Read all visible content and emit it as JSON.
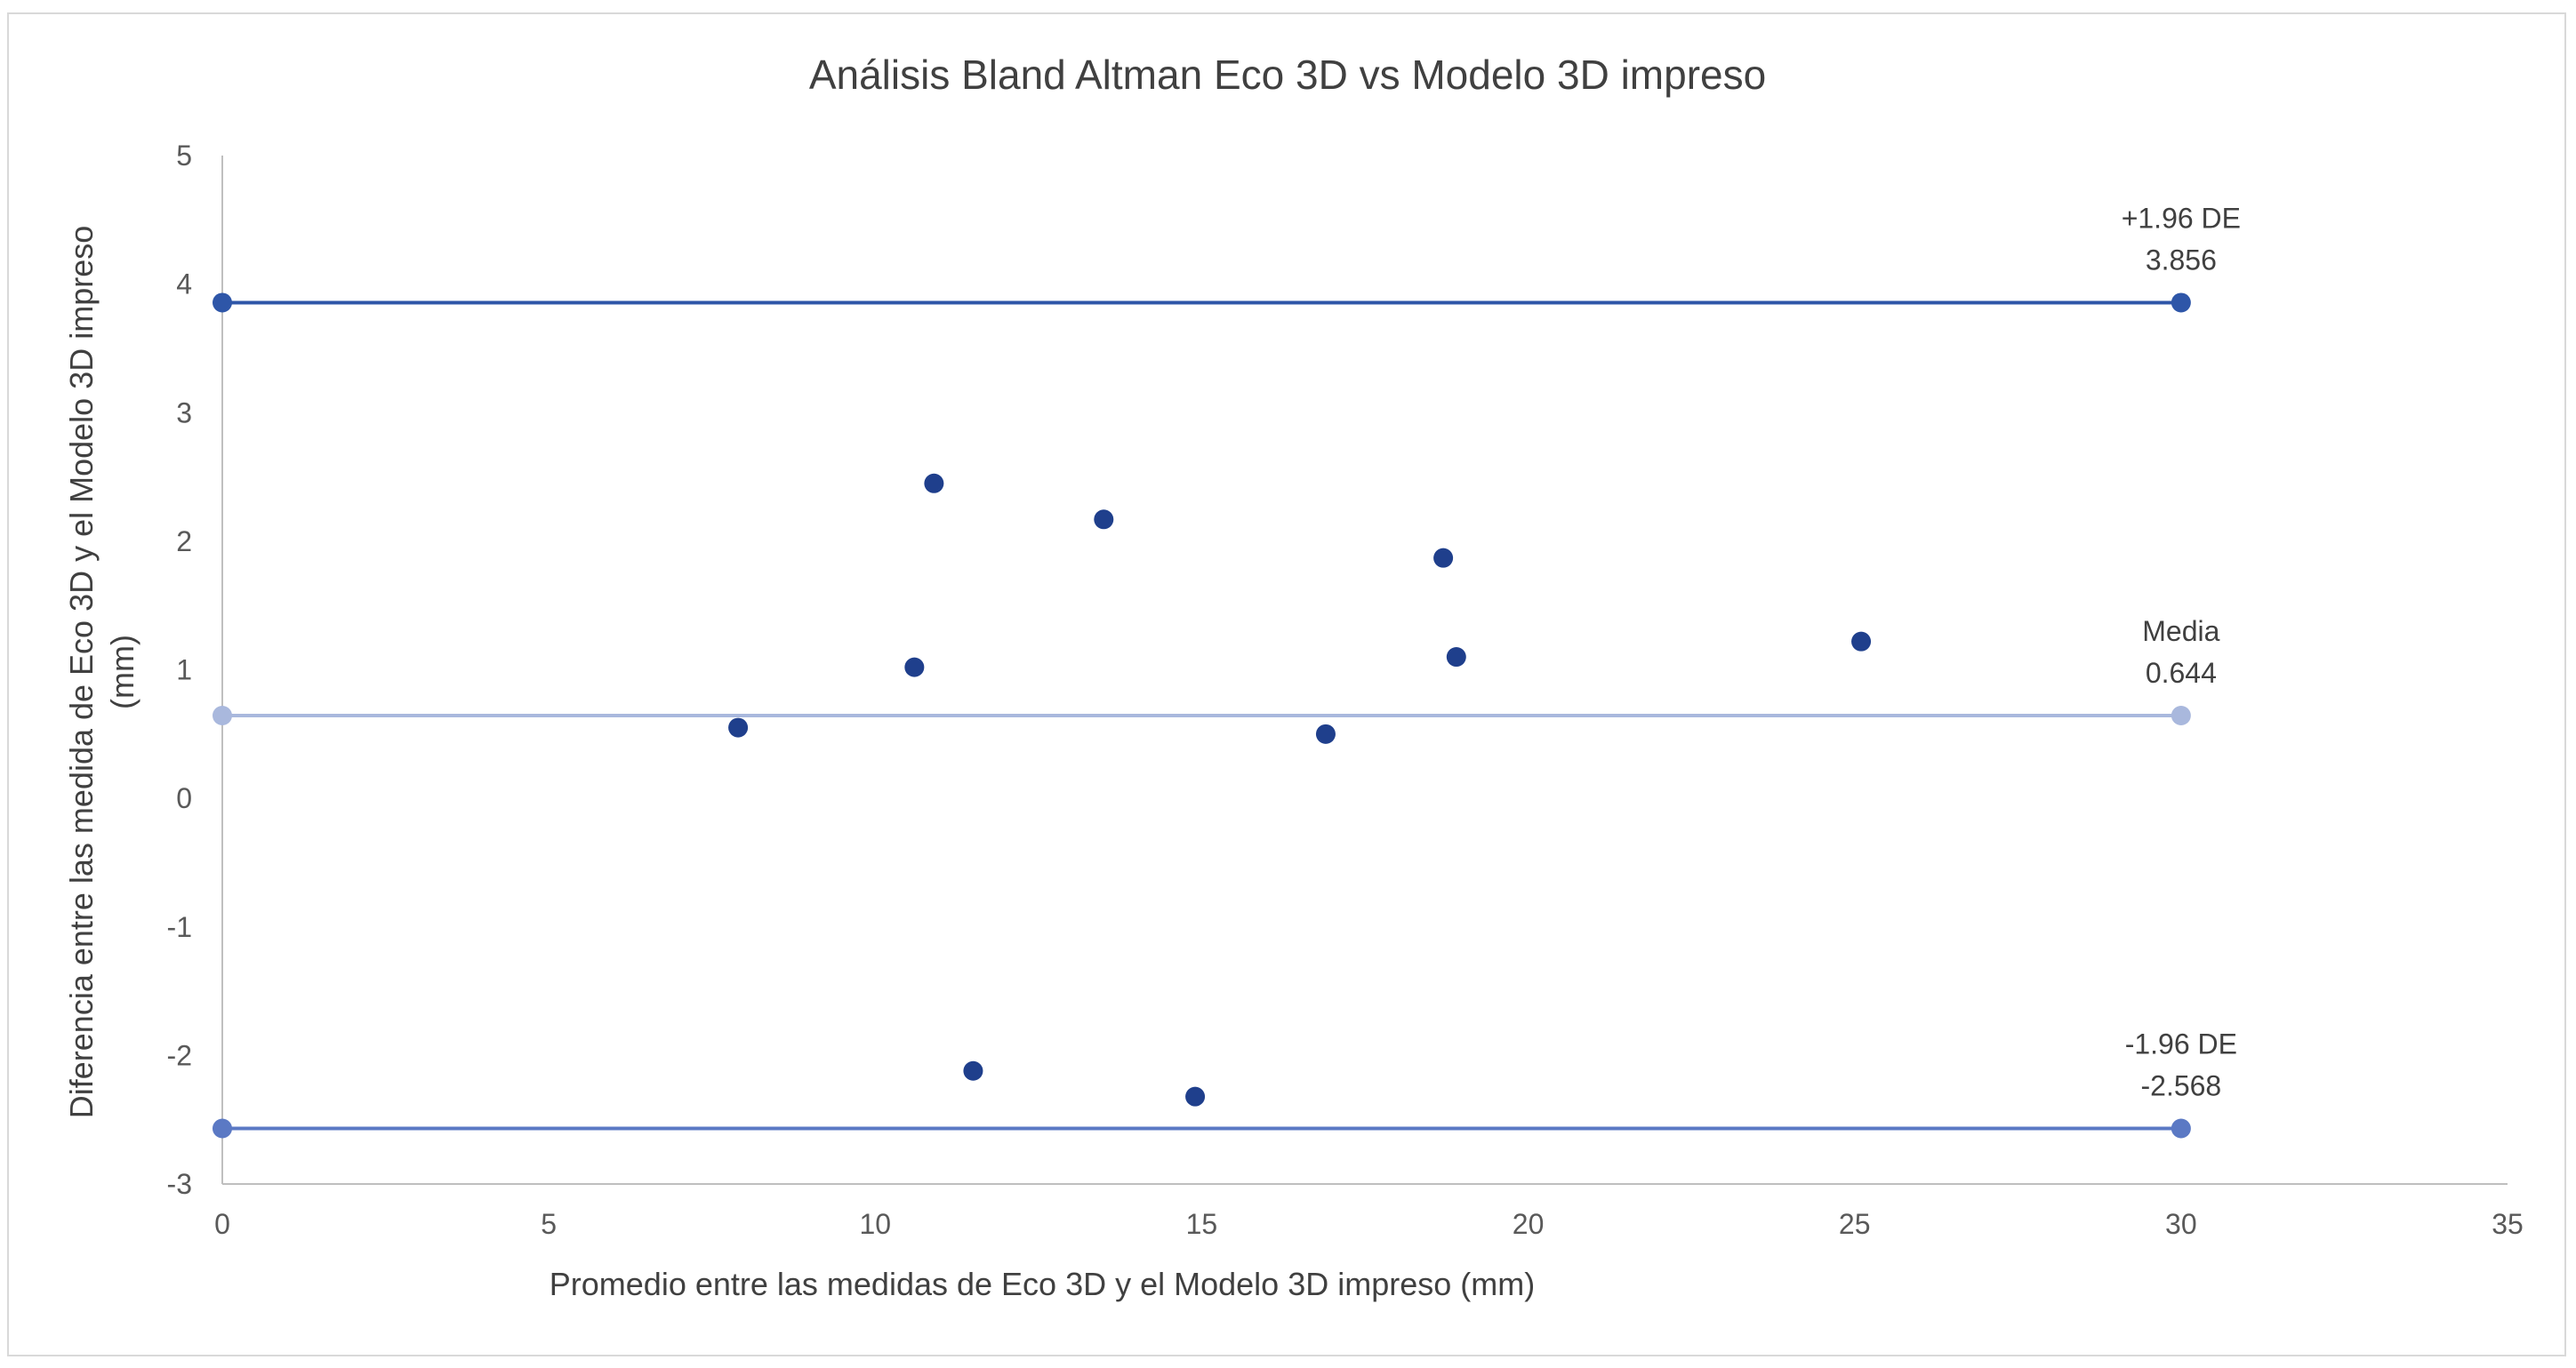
{
  "chart_data": {
    "type": "scatter",
    "title": "Análisis Bland Altman Eco 3D vs Modelo 3D impreso",
    "xlabel": "Promedio entre las medidas de Eco 3D y el Modelo 3D impreso (mm)",
    "ylabel_lines": [
      "Diferencia entre las medida de Eco 3D y el Modelo 3D impreso",
      "(mm)"
    ],
    "xlim": [
      0,
      35
    ],
    "ylim": [
      -3,
      5
    ],
    "x_ticks": [
      0,
      5,
      10,
      15,
      20,
      25,
      30,
      35
    ],
    "y_ticks": [
      -3,
      -2,
      -1,
      0,
      1,
      2,
      3,
      4,
      5
    ],
    "grid": false,
    "legend": "none",
    "points": [
      {
        "x": 7.9,
        "y": 0.55
      },
      {
        "x": 10.6,
        "y": 1.02
      },
      {
        "x": 10.9,
        "y": 2.45
      },
      {
        "x": 11.5,
        "y": -2.12
      },
      {
        "x": 13.5,
        "y": 2.17
      },
      {
        "x": 14.9,
        "y": -2.32
      },
      {
        "x": 16.9,
        "y": 0.5
      },
      {
        "x": 18.7,
        "y": 1.87
      },
      {
        "x": 18.9,
        "y": 1.1
      },
      {
        "x": 25.1,
        "y": 1.22
      }
    ],
    "reference_lines": [
      {
        "label": "+1.96 DE",
        "value_label": "3.856",
        "y": 3.856,
        "x_start": 0,
        "x_end": 30
      },
      {
        "label": "Media",
        "value_label": "0.644",
        "y": 0.644,
        "x_start": 0,
        "x_end": 30
      },
      {
        "label": "-1.96 DE",
        "value_label": "-2.568",
        "y": -2.568,
        "x_start": 0,
        "x_end": 30
      }
    ],
    "colors": {
      "points": "#1f3f8c",
      "upper_line": "#2e56a8",
      "mean_line": "#a9b8dd",
      "lower_line": "#5b79c4",
      "axis": "#bfbfbf"
    }
  }
}
